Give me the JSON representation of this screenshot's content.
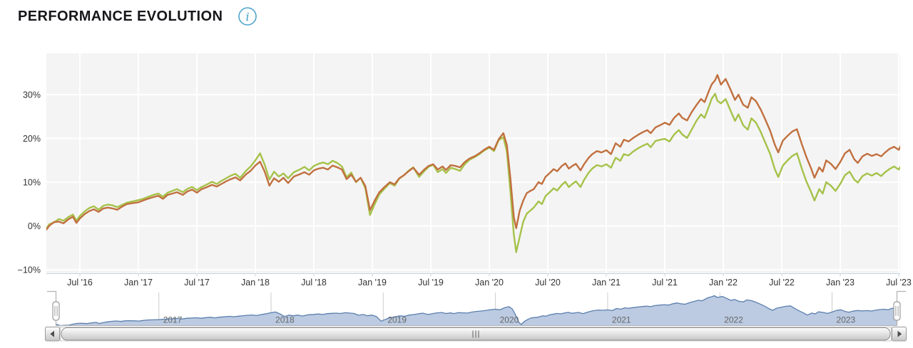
{
  "header": {
    "title": "PERFORMANCE EVOLUTION",
    "info_glyph": "i",
    "info_color": "#4fa6cc"
  },
  "chart_data": {
    "type": "line",
    "title": "PERFORMANCE EVOLUTION",
    "xlabel": "",
    "ylabel": "",
    "x_unit": "decimal_year",
    "grid": true,
    "legend": "none",
    "plot_bg": "#f4f4f4",
    "grid_color": "#ffffff",
    "axis_line_color": "#c7d4e0",
    "label_color": "#333333",
    "ylim": [
      -10.8,
      39.4
    ],
    "y_ticks": [
      {
        "v": 30,
        "label": "30%"
      },
      {
        "v": 20,
        "label": "20%"
      },
      {
        "v": 10,
        "label": "10%"
      },
      {
        "v": 0,
        "label": "0%"
      },
      {
        "v": -10,
        "label": "−10%"
      }
    ],
    "x_ticks": [
      {
        "t": 2016.5,
        "label": "Jul '16"
      },
      {
        "t": 2017.0,
        "label": "Jan '17"
      },
      {
        "t": 2017.5,
        "label": "Jul '17"
      },
      {
        "t": 2018.0,
        "label": "Jan '18"
      },
      {
        "t": 2018.5,
        "label": "Jul '18"
      },
      {
        "t": 2019.0,
        "label": "Jan '19"
      },
      {
        "t": 2019.5,
        "label": "Jul '19"
      },
      {
        "t": 2020.0,
        "label": "Jan '20"
      },
      {
        "t": 2020.5,
        "label": "Jul '20"
      },
      {
        "t": 2021.0,
        "label": "Jan '21"
      },
      {
        "t": 2021.5,
        "label": "Jul '21"
      },
      {
        "t": 2022.0,
        "label": "Jan '22"
      },
      {
        "t": 2022.5,
        "label": "Jul '22"
      },
      {
        "t": 2023.0,
        "label": "Jan '23"
      },
      {
        "t": 2023.5,
        "label": "Jul '23"
      }
    ],
    "x": [
      2016.08,
      2016.12,
      2016.16,
      2016.2,
      2016.24,
      2016.28,
      2016.32,
      2016.36,
      2016.4,
      2016.44,
      2016.47,
      2016.5,
      2016.54,
      2016.58,
      2016.62,
      2016.66,
      2016.7,
      2016.74,
      2016.78,
      2016.82,
      2016.86,
      2016.9,
      2016.95,
      2017.0,
      2017.04,
      2017.08,
      2017.13,
      2017.17,
      2017.21,
      2017.25,
      2017.29,
      2017.33,
      2017.38,
      2017.42,
      2017.46,
      2017.5,
      2017.54,
      2017.58,
      2017.63,
      2017.67,
      2017.71,
      2017.75,
      2017.79,
      2017.83,
      2017.87,
      2017.92,
      2017.96,
      2018.0,
      2018.04,
      2018.08,
      2018.12,
      2018.16,
      2018.2,
      2018.24,
      2018.28,
      2018.33,
      2018.38,
      2018.42,
      2018.46,
      2018.5,
      2018.54,
      2018.58,
      2018.62,
      2018.66,
      2018.7,
      2018.74,
      2018.78,
      2018.82,
      2018.86,
      2018.9,
      2018.94,
      2018.98,
      2019.02,
      2019.06,
      2019.1,
      2019.15,
      2019.19,
      2019.23,
      2019.27,
      2019.31,
      2019.35,
      2019.4,
      2019.44,
      2019.48,
      2019.52,
      2019.56,
      2019.6,
      2019.63,
      2019.67,
      2019.71,
      2019.75,
      2019.79,
      2019.83,
      2019.88,
      2019.92,
      2019.96,
      2020.0,
      2020.04,
      2020.08,
      2020.12,
      2020.15,
      2020.18,
      2020.21,
      2020.23,
      2020.26,
      2020.29,
      2020.32,
      2020.35,
      2020.38,
      2020.42,
      2020.45,
      2020.48,
      2020.52,
      2020.55,
      2020.58,
      2020.62,
      2020.65,
      2020.68,
      2020.71,
      2020.74,
      2020.78,
      2020.81,
      2020.85,
      2020.88,
      2020.92,
      2020.96,
      2021.0,
      2021.04,
      2021.08,
      2021.12,
      2021.15,
      2021.19,
      2021.23,
      2021.27,
      2021.31,
      2021.35,
      2021.38,
      2021.42,
      2021.46,
      2021.5,
      2021.54,
      2021.58,
      2021.62,
      2021.65,
      2021.69,
      2021.73,
      2021.77,
      2021.81,
      2021.84,
      2021.88,
      2021.9,
      2021.93,
      2021.95,
      2021.98,
      2022.02,
      2022.06,
      2022.1,
      2022.13,
      2022.17,
      2022.21,
      2022.24,
      2022.28,
      2022.32,
      2022.36,
      2022.4,
      2022.44,
      2022.47,
      2022.51,
      2022.55,
      2022.59,
      2022.63,
      2022.67,
      2022.71,
      2022.75,
      2022.78,
      2022.82,
      2022.85,
      2022.88,
      2022.92,
      2022.96,
      2023.0,
      2023.04,
      2023.08,
      2023.12,
      2023.15,
      2023.19,
      2023.23,
      2023.27,
      2023.31,
      2023.35,
      2023.38,
      2023.42,
      2023.46,
      2023.5,
      2023.53,
      2023.56,
      2023.58
    ],
    "series": [
      {
        "name": "series-green",
        "color": "#a5c249",
        "values": [
          0,
          -1.6,
          -1.2,
          -1,
          0.4,
          0.8,
          1.6,
          1.2,
          2,
          2.6,
          1.2,
          2.3,
          3.3,
          4.1,
          4.5,
          3.7,
          4.6,
          4.9,
          4.7,
          4.3,
          4.8,
          5.3,
          5.6,
          5.9,
          6.2,
          6.6,
          7.1,
          7.4,
          6.7,
          7.6,
          8,
          8.4,
          7.7,
          8.5,
          8.9,
          8.2,
          8.9,
          9.4,
          10.1,
          9.6,
          10.3,
          10.9,
          11.5,
          11.9,
          11,
          12.6,
          13.6,
          15,
          16.6,
          14,
          10.6,
          12.4,
          11.3,
          12,
          10.9,
          12.3,
          12.9,
          13.5,
          12.7,
          13.7,
          14.2,
          14.5,
          14.1,
          14.9,
          14.4,
          13.6,
          11.1,
          12.2,
          10,
          11,
          8.6,
          2.5,
          5,
          7.2,
          8.4,
          9.8,
          9.2,
          10.8,
          11.6,
          12.6,
          13.4,
          11.2,
          12.4,
          13.5,
          14,
          12.3,
          13,
          12.1,
          13.3,
          13,
          12.6,
          14.1,
          15.1,
          15.8,
          16.5,
          17.3,
          17.9,
          17.1,
          19.6,
          20.3,
          17,
          8,
          -2,
          -6,
          -2.5,
          1,
          2.8,
          3.5,
          4.2,
          5.6,
          5,
          6.8,
          7.8,
          8.6,
          8.1,
          9.4,
          10.1,
          8.9,
          9.6,
          10.2,
          8.9,
          10.5,
          12.2,
          13.1,
          13.9,
          13.6,
          14.1,
          13.3,
          15.6,
          14.9,
          16.4,
          16.1,
          17,
          17.7,
          18.3,
          18.8,
          18,
          19.4,
          19.7,
          19.9,
          19.3,
          20.9,
          21.9,
          20.9,
          20.1,
          22,
          24,
          25.5,
          24.7,
          27.5,
          29,
          30.2,
          28.6,
          28,
          29,
          26.5,
          24,
          25.5,
          23,
          22,
          24.6,
          23.6,
          21.5,
          19,
          16.5,
          13,
          11.2,
          13.8,
          15,
          16,
          16.6,
          13.2,
          10.2,
          7.8,
          5.8,
          8.4,
          7.4,
          10,
          9.2,
          8,
          9.6,
          11.6,
          12.4,
          10.6,
          9.9,
          11.4,
          12,
          11.5,
          12.1,
          11.4,
          12.2,
          13,
          13.6,
          12.9,
          14.1,
          14.3,
          14
        ]
      },
      {
        "name": "series-orange",
        "color": "#c1703f",
        "values": [
          0,
          -1.8,
          -1.5,
          -1.3,
          0.1,
          0.9,
          1,
          0.6,
          1.5,
          2.1,
          0.7,
          1.7,
          2.7,
          3.4,
          3.8,
          3.2,
          4,
          4.2,
          4,
          3.7,
          4.4,
          5,
          5.2,
          5.4,
          5.8,
          6.2,
          6.6,
          6.9,
          6.2,
          7.1,
          7.4,
          7.7,
          7.1,
          7.9,
          8.3,
          7.6,
          8.4,
          8.8,
          9.4,
          9,
          9.6,
          10.2,
          10.7,
          11.1,
          10.4,
          11.8,
          12.6,
          13.8,
          14.7,
          12.4,
          9.2,
          10.9,
          10.1,
          11,
          9.8,
          11.3,
          11.8,
          12.3,
          11.7,
          12.7,
          13.1,
          13.3,
          12.9,
          13.8,
          13.4,
          12.9,
          10.7,
          11.7,
          10.1,
          11,
          9.1,
          3.6,
          5.8,
          7.7,
          8.8,
          10,
          9.5,
          10.9,
          11.6,
          12.5,
          13.3,
          11.7,
          12.8,
          13.7,
          14.1,
          12.9,
          13.6,
          12.8,
          13.9,
          13.7,
          13.4,
          14.6,
          15.4,
          16,
          16.7,
          17.5,
          18.1,
          17.4,
          19.8,
          21.2,
          18.5,
          11,
          2,
          -0.5,
          3.5,
          5.8,
          7.5,
          8,
          8.4,
          10,
          9.6,
          11.2,
          12.2,
          13,
          12.5,
          13.7,
          14.3,
          13.1,
          13.7,
          14.2,
          12.7,
          14.1,
          15.6,
          16.4,
          17.1,
          16.8,
          17.3,
          16.4,
          18.9,
          18.1,
          19.7,
          19.3,
          20.1,
          20.8,
          21.4,
          21.9,
          21.2,
          22.5,
          23,
          23.6,
          23.1,
          24.7,
          25.7,
          24.7,
          24.1,
          26,
          27.6,
          29,
          28.3,
          31,
          32.3,
          33.3,
          34.5,
          32.3,
          33.6,
          31.3,
          28.8,
          30,
          27.7,
          27,
          29.4,
          28.5,
          26.6,
          24.3,
          21.8,
          18.6,
          16.8,
          19.5,
          20.6,
          21.6,
          22.1,
          18.8,
          15.8,
          13.2,
          11,
          13.4,
          12.4,
          15,
          14.2,
          13,
          14.6,
          16.6,
          17.4,
          15.2,
          14.4,
          15.9,
          16.5,
          16,
          16.4,
          15.9,
          16.7,
          17.6,
          18.1,
          17.4,
          19,
          19.2,
          18.9
        ]
      }
    ],
    "navigator": {
      "years": [
        {
          "t": 2017,
          "label": "2017"
        },
        {
          "t": 2018,
          "label": "2018"
        },
        {
          "t": 2019,
          "label": "2019"
        },
        {
          "t": 2020,
          "label": "2020"
        },
        {
          "t": 2021,
          "label": "2021"
        },
        {
          "t": 2022,
          "label": "2022"
        },
        {
          "t": 2023,
          "label": "2023"
        }
      ],
      "fill": "#bccbe2",
      "line": "#5b7fad",
      "outline": "#b2b1b6",
      "gridline": "#cccccc",
      "label_color": "#666666",
      "handle_fill": "#ffffff",
      "handle_border": "#999999"
    },
    "scrollbar": {
      "thumb_top": "#fefefe",
      "thumb_bottom": "#c6c6c6",
      "border": "#8f8f8f",
      "button_border": "#9a9a9a",
      "track": "#fbfbfb",
      "track_border": "#cccccc",
      "arrow": "#4f4f4f",
      "grip": "#5f5f5f"
    }
  }
}
